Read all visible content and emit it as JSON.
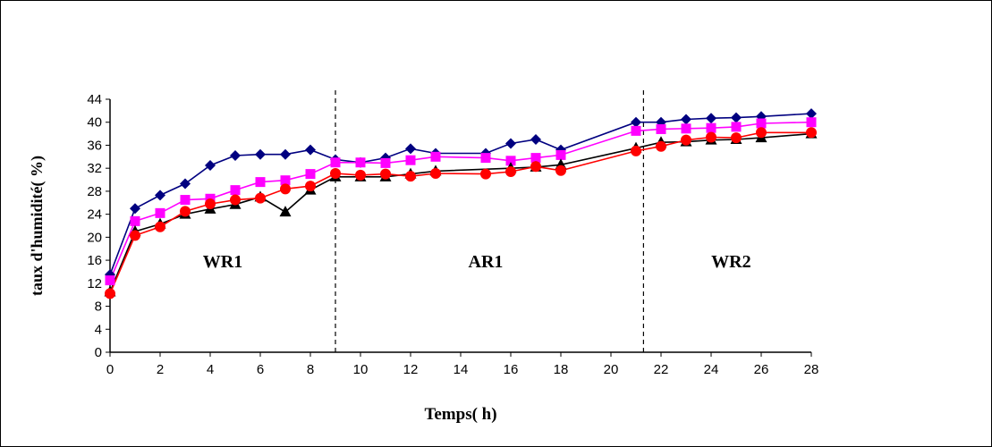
{
  "chart_data": {
    "type": "line",
    "xlabel": "Temps( h)",
    "ylabel": "taux d'humidité( %)",
    "xlim": [
      0,
      28
    ],
    "ylim": [
      0,
      44
    ],
    "x_ticks": [
      0,
      2,
      4,
      6,
      8,
      10,
      12,
      14,
      16,
      18,
      20,
      22,
      24,
      26,
      28
    ],
    "y_ticks": [
      0,
      4,
      8,
      12,
      16,
      20,
      24,
      28,
      32,
      36,
      40,
      44
    ],
    "grid": false,
    "legend": "none",
    "phase_boundaries": [
      9,
      21.3
    ],
    "phases": [
      {
        "label": "WR1",
        "x": 4.5
      },
      {
        "label": "AR1",
        "x": 15
      },
      {
        "label": "WR2",
        "x": 24.8
      }
    ],
    "series": [
      {
        "color": "#000080",
        "marker": "diamond",
        "x": [
          0,
          1,
          2,
          3,
          4,
          5,
          6,
          7,
          8,
          9,
          10,
          11,
          12,
          13,
          15,
          16,
          17,
          18,
          21,
          22,
          23,
          24,
          25,
          26,
          28
        ],
        "y": [
          13.5,
          25,
          27.3,
          29.3,
          32.5,
          34.2,
          34.4,
          34.4,
          35.2,
          33.5,
          33,
          33.8,
          35.4,
          34.6,
          34.6,
          36.3,
          37,
          35.2,
          40,
          40,
          40.5,
          40.7,
          40.8,
          41,
          41.5
        ]
      },
      {
        "color": "#ff00ff",
        "marker": "square",
        "x": [
          0,
          1,
          2,
          3,
          4,
          5,
          6,
          7,
          8,
          9,
          10,
          11,
          12,
          13,
          15,
          16,
          17,
          18,
          21,
          22,
          23,
          24,
          25,
          26,
          28
        ],
        "y": [
          12.5,
          22.8,
          24.2,
          26.5,
          26.7,
          28.2,
          29.6,
          29.9,
          31,
          33,
          33,
          32.9,
          33.4,
          34,
          33.8,
          33.3,
          33.8,
          34.3,
          38.5,
          38.8,
          38.9,
          39,
          39.2,
          39.8,
          40
        ]
      },
      {
        "color": "#000000",
        "marker": "triangle",
        "x": [
          0,
          1,
          2,
          3,
          4,
          5,
          6,
          7,
          8,
          9,
          10,
          11,
          12,
          13,
          16,
          17,
          18,
          21,
          22,
          23,
          24,
          25,
          26,
          28
        ],
        "y": [
          10.5,
          21,
          22.3,
          24,
          24.9,
          25.7,
          27,
          24.4,
          28.2,
          30.5,
          30.5,
          30.5,
          31,
          31.5,
          32,
          32.2,
          32.6,
          35.5,
          36.5,
          36.6,
          36.9,
          37,
          37.3,
          38
        ]
      },
      {
        "color": "#ff0000",
        "marker": "circle",
        "x": [
          0,
          1,
          2,
          3,
          4,
          5,
          6,
          7,
          8,
          9,
          10,
          11,
          12,
          13,
          15,
          16,
          17,
          18,
          21,
          22,
          23,
          24,
          25,
          26,
          28
        ],
        "y": [
          10.2,
          20.3,
          21.8,
          24.5,
          25.8,
          26.5,
          26.8,
          28.4,
          28.9,
          31.1,
          30.8,
          31,
          30.6,
          31.1,
          31,
          31.4,
          32.3,
          31.6,
          35,
          35.8,
          36.9,
          37.4,
          37.3,
          38.2,
          38.2
        ]
      }
    ]
  }
}
